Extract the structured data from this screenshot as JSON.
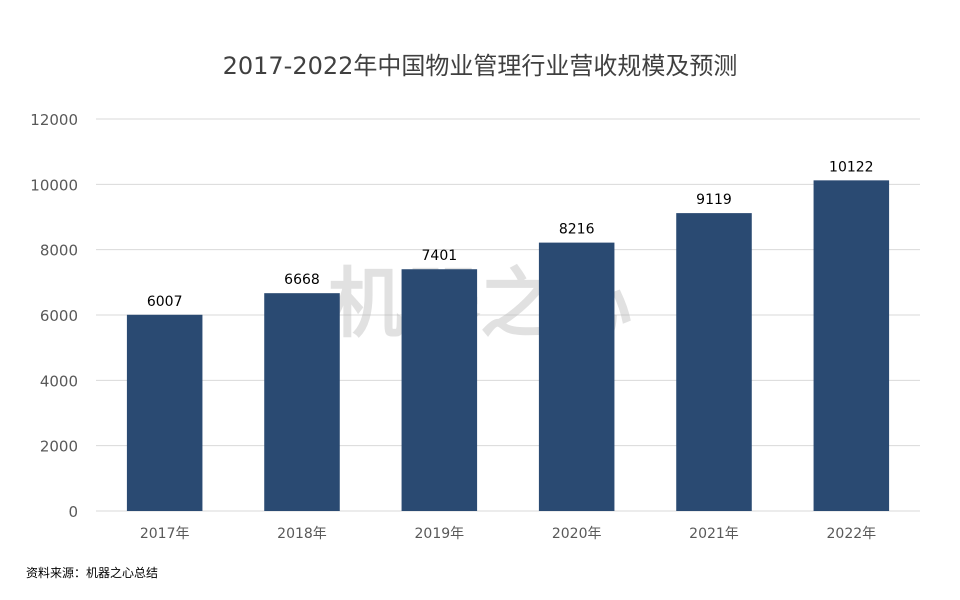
{
  "chart_data": {
    "type": "bar",
    "title": "2017-2022年中国物业管理行业营收规模及预测",
    "categories": [
      "2017年",
      "2018年",
      "2019年",
      "2020年",
      "2021年",
      "2022年"
    ],
    "values": [
      6007,
      6668,
      7401,
      8216,
      9119,
      10122
    ],
    "data_labels": [
      "6007",
      "6668",
      "7401",
      "8216",
      "9119",
      "10122"
    ],
    "y_ticks": [
      "0",
      "2000",
      "4000",
      "6000",
      "8000",
      "10000",
      "12000"
    ],
    "ylim": [
      0,
      12000
    ],
    "xlabel": "",
    "ylabel": "",
    "grid": true,
    "legend": "none",
    "bar_color": "#2a4a72",
    "grid_color": "#d9d9d9"
  },
  "watermark": "机器之心",
  "source": "资料来源：机器之心总结"
}
